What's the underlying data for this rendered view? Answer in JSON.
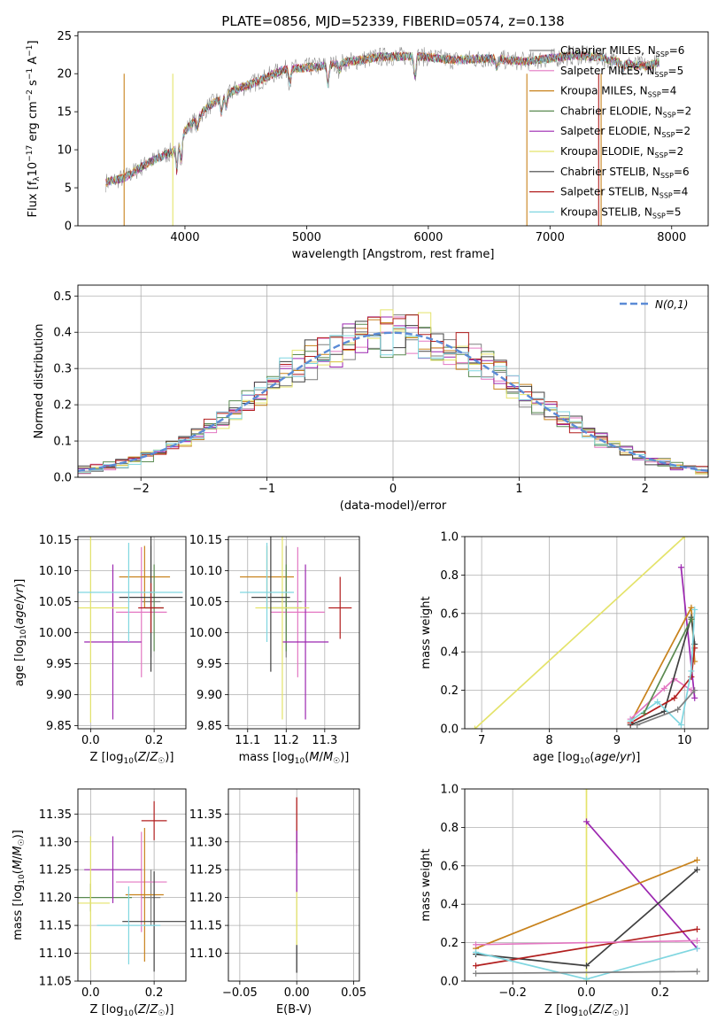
{
  "figure": {
    "title": "PLATE=0856, MJD=52339, FIBERID=0574, z=0.138"
  },
  "series_styles": [
    {
      "name": "Chabrier MILES",
      "nssp": "6",
      "color": "#7f7f7f"
    },
    {
      "name": "Salpeter MILES",
      "nssp": "5",
      "color": "#e377c2"
    },
    {
      "name": "Kroupa MILES",
      "nssp": "4",
      "color": "#c8821c"
    },
    {
      "name": "Chabrier ELODIE",
      "nssp": "2",
      "color": "#5a8a50"
    },
    {
      "name": "Salpeter ELODIE",
      "nssp": "2",
      "color": "#9c27b0"
    },
    {
      "name": "Kroupa ELODIE",
      "nssp": "2",
      "color": "#e4e36a"
    },
    {
      "name": "Chabrier STELIB",
      "nssp": "6",
      "color": "#404040"
    },
    {
      "name": "Salpeter STELIB",
      "nssp": "4",
      "color": "#b21f1f"
    },
    {
      "name": "Kroupa STELIB",
      "nssp": "5",
      "color": "#7fd6e0"
    }
  ],
  "chart_data": [
    {
      "type": "line",
      "panel": "spectrum",
      "title": "PLATE=0856, MJD=52339, FIBERID=0574, z=0.138",
      "xlabel": "wavelength [Angstrom, rest frame]",
      "ylabel": "Flux [f_λ 10^-17 erg cm^-2 s^-1 A^-1]",
      "xlim": [
        3120,
        8300
      ],
      "ylim": [
        0,
        25.5
      ],
      "xticks": [
        4000,
        5000,
        6000,
        7000,
        8000
      ],
      "yticks": [
        0,
        5,
        10,
        15,
        20,
        25
      ],
      "legend": "upper right",
      "continuum": {
        "x": [
          3350,
          3500,
          3700,
          3900,
          4000,
          4200,
          4400,
          4600,
          4800,
          5000,
          5200,
          5400,
          5600,
          5800,
          6000,
          6200,
          6500,
          6800,
          7000,
          7200,
          7400,
          7600,
          7800,
          7900
        ],
        "y": [
          5.7,
          6.3,
          8.3,
          9.8,
          12.5,
          15.8,
          17.8,
          19.0,
          20.5,
          20.8,
          21.2,
          21.7,
          22.2,
          22.3,
          22.2,
          21.8,
          22.0,
          21.6,
          22.0,
          22.4,
          22.2,
          21.3,
          21.0,
          21.5
        ]
      }
    },
    {
      "type": "line",
      "panel": "residual_histogram",
      "xlabel": "(data-model)/error",
      "ylabel": "Normed distribution",
      "xlim": [
        -2.5,
        2.5
      ],
      "ylim": [
        0,
        0.53
      ],
      "xticks": [
        -2,
        -1,
        0,
        1,
        2
      ],
      "yticks": [
        0.0,
        0.1,
        0.2,
        0.3,
        0.4,
        0.5
      ],
      "grid": true,
      "legend": "upper right",
      "reference_label": "N(0,1)",
      "reference_color": "#5b8bd6"
    },
    {
      "type": "scatter",
      "panel": "age_vs_Z",
      "xlabel": "Z [log10(Z/Z☉)]",
      "ylabel": "age [log10(age/yr)]",
      "xlim": [
        -0.04,
        0.3
      ],
      "ylim": [
        9.845,
        10.155
      ],
      "xticks": [
        0.0,
        0.2
      ],
      "yticks": [
        9.85,
        9.9,
        9.95,
        10.0,
        10.05,
        10.1,
        10.15
      ],
      "grid": true,
      "points": [
        {
          "series": "Chabrier MILES",
          "x": 0.19,
          "y": 10.05,
          "xerr": 0.03,
          "yerr": 0.09
        },
        {
          "series": "Salpeter MILES",
          "x": 0.16,
          "y": 10.033,
          "xerr": 0.08,
          "yerr": 0.105
        },
        {
          "series": "Kroupa MILES",
          "x": 0.17,
          "y": 10.09,
          "xerr": 0.08,
          "yerr": 0.05
        },
        {
          "series": "Chabrier ELODIE",
          "x": 0.2,
          "y": 10.04,
          "xerr": 0.03,
          "yerr": 0.07
        },
        {
          "series": "Salpeter ELODIE",
          "x": 0.07,
          "y": 9.985,
          "xerr": 0.09,
          "yerr": 0.125
        },
        {
          "series": "Kroupa ELODIE",
          "x": 0.0,
          "y": 10.04,
          "xerr": 0.12,
          "yerr": 0.185
        },
        {
          "series": "Chabrier STELIB",
          "x": 0.19,
          "y": 10.057,
          "xerr": 0.1,
          "yerr": 0.12
        },
        {
          "series": "Salpeter STELIB",
          "x": 0.19,
          "y": 10.04,
          "xerr": 0.04,
          "yerr": 0.04
        },
        {
          "series": "Kroupa STELIB",
          "x": 0.12,
          "y": 10.065,
          "xerr": 0.17,
          "yerr": 0.08
        }
      ]
    },
    {
      "type": "scatter",
      "panel": "age_vs_mass",
      "xlabel": "mass [log10(M/M☉)]",
      "xlim": [
        11.05,
        11.39
      ],
      "ylim": [
        9.845,
        10.155
      ],
      "xticks": [
        11.1,
        11.2,
        11.3
      ],
      "yticks": [
        9.85,
        9.9,
        9.95,
        10.0,
        10.05,
        10.1,
        10.15
      ],
      "grid": true,
      "points": [
        {
          "series": "Chabrier MILES",
          "x": 11.2,
          "y": 10.05,
          "xerr": 0.04,
          "yerr": 0.09
        },
        {
          "series": "Salpeter MILES",
          "x": 11.23,
          "y": 10.033,
          "xerr": 0.07,
          "yerr": 0.105
        },
        {
          "series": "Kroupa MILES",
          "x": 11.15,
          "y": 10.09,
          "xerr": 0.07,
          "yerr": 0.05
        },
        {
          "series": "Chabrier ELODIE",
          "x": 11.2,
          "y": 10.04,
          "xerr": 0.04,
          "yerr": 0.07
        },
        {
          "series": "Salpeter ELODIE",
          "x": 11.25,
          "y": 9.985,
          "xerr": 0.06,
          "yerr": 0.125
        },
        {
          "series": "Kroupa ELODIE",
          "x": 11.19,
          "y": 10.04,
          "xerr": 0.07,
          "yerr": 0.18
        },
        {
          "series": "Chabrier STELIB",
          "x": 11.16,
          "y": 10.057,
          "xerr": 0.05,
          "yerr": 0.12
        },
        {
          "series": "Salpeter STELIB",
          "x": 11.34,
          "y": 10.04,
          "xerr": 0.03,
          "yerr": 0.05
        },
        {
          "series": "Kroupa STELIB",
          "x": 11.15,
          "y": 10.065,
          "xerr": 0.07,
          "yerr": 0.08
        }
      ]
    },
    {
      "type": "line",
      "panel": "mass_weight_vs_age",
      "xlabel": "age [log10(age/yr)]",
      "ylabel": "mass weight",
      "xlim": [
        6.75,
        10.35
      ],
      "ylim": [
        0,
        1.0
      ],
      "xticks": [
        7,
        8,
        9,
        10
      ],
      "yticks": [
        0.0,
        0.2,
        0.4,
        0.6,
        0.8,
        1.0
      ],
      "grid": true,
      "series": [
        {
          "name": "Kroupa ELODIE",
          "x": [
            6.9,
            10.0
          ],
          "y": [
            0.0,
            1.0
          ]
        },
        {
          "name": "Salpeter ELODIE",
          "x": [
            9.95,
            10.15
          ],
          "y": [
            0.84,
            0.16
          ]
        },
        {
          "name": "Kroupa MILES",
          "x": [
            9.2,
            10.1,
            10.15
          ],
          "y": [
            0.03,
            0.63,
            0.35
          ]
        },
        {
          "name": "Salpeter MILES",
          "x": [
            9.2,
            9.7,
            9.85,
            10.1
          ],
          "y": [
            0.05,
            0.21,
            0.26,
            0.2
          ]
        },
        {
          "name": "Chabrier STELIB",
          "x": [
            9.2,
            9.7,
            10.1,
            10.15
          ],
          "y": [
            0.02,
            0.09,
            0.58,
            0.44
          ]
        },
        {
          "name": "Salpeter STELIB",
          "x": [
            9.2,
            9.85,
            10.1,
            10.15
          ],
          "y": [
            0.03,
            0.16,
            0.27,
            0.42
          ]
        },
        {
          "name": "Kroupa STELIB",
          "x": [
            9.2,
            9.6,
            9.95,
            10.1,
            10.15
          ],
          "y": [
            0.04,
            0.14,
            0.02,
            0.3,
            0.62
          ]
        },
        {
          "name": "Chabrier MILES",
          "x": [
            9.3,
            9.9,
            10.15
          ],
          "y": [
            0.02,
            0.1,
            0.2
          ]
        },
        {
          "name": "Chabrier ELODIE",
          "x": [
            9.4,
            10.1
          ],
          "y": [
            0.08,
            0.57
          ]
        }
      ]
    },
    {
      "type": "scatter",
      "panel": "mass_vs_Z",
      "xlabel": "Z [log10(Z/Z☉)]",
      "ylabel": "mass [log10(M/M☉)]",
      "xlim": [
        -0.04,
        0.3
      ],
      "ylim": [
        11.05,
        11.395
      ],
      "xticks": [
        0.0,
        0.2
      ],
      "yticks": [
        11.05,
        11.1,
        11.15,
        11.2,
        11.25,
        11.3,
        11.35
      ],
      "grid": true,
      "points": [
        {
          "series": "Chabrier MILES",
          "x": 0.19,
          "y": 11.2,
          "xerr": 0.03,
          "yerr": 0.05
        },
        {
          "series": "Salpeter MILES",
          "x": 0.16,
          "y": 11.228,
          "xerr": 0.08,
          "yerr": 0.09
        },
        {
          "series": "Kroupa MILES",
          "x": 0.17,
          "y": 11.205,
          "xerr": 0.06,
          "yerr": 0.12
        },
        {
          "series": "Chabrier ELODIE",
          "x": 0.0,
          "y": 11.2,
          "xerr": 0.13,
          "yerr": 0.025
        },
        {
          "series": "Salpeter ELODIE",
          "x": 0.07,
          "y": 11.25,
          "xerr": 0.09,
          "yerr": 0.06
        },
        {
          "series": "Kroupa ELODIE",
          "x": 0.0,
          "y": 11.19,
          "xerr": 0.06,
          "yerr": 0.12
        },
        {
          "series": "Chabrier STELIB",
          "x": 0.2,
          "y": 11.157,
          "xerr": 0.1,
          "yerr": 0.09
        },
        {
          "series": "Salpeter STELIB",
          "x": 0.2,
          "y": 11.338,
          "xerr": 0.04,
          "yerr": 0.035
        },
        {
          "series": "Kroupa STELIB",
          "x": 0.12,
          "y": 11.15,
          "xerr": 0.1,
          "yerr": 0.07
        }
      ]
    },
    {
      "type": "scatter",
      "panel": "mass_vs_EBV",
      "xlabel": "E(B-V)",
      "xlim": [
        -0.06,
        0.055
      ],
      "ylim": [
        11.05,
        11.395
      ],
      "xticks": [
        -0.05,
        0.0,
        0.05
      ],
      "yticks": [
        11.1,
        11.15,
        11.2,
        11.25,
        11.3,
        11.35
      ],
      "grid": true,
      "segments": [
        {
          "series": "Salpeter STELIB",
          "x": 0.0,
          "y0": 11.28,
          "y1": 11.38
        },
        {
          "series": "Salpeter ELODIE",
          "x": 0.0,
          "y0": 11.21,
          "y1": 11.32
        },
        {
          "series": "Chabrier STELIB",
          "x": 0.0,
          "y0": 11.065,
          "y1": 11.115
        },
        {
          "series": "Kroupa ELODIE",
          "x": 0.0,
          "y0": 11.115,
          "y1": 11.21
        }
      ]
    },
    {
      "type": "line",
      "panel": "mass_weight_vs_Z",
      "xlabel": "Z [log10(Z/Z☉)]",
      "ylabel": "mass weight",
      "xlim": [
        -0.33,
        0.33
      ],
      "ylim": [
        0,
        1.0
      ],
      "xticks": [
        -0.2,
        0.0,
        0.2
      ],
      "yticks": [
        0.0,
        0.2,
        0.4,
        0.6,
        0.8,
        1.0
      ],
      "grid": true,
      "series": [
        {
          "name": "Kroupa ELODIE",
          "x": [
            0.0,
            0.0
          ],
          "y": [
            0.0,
            1.0
          ]
        },
        {
          "name": "Salpeter ELODIE",
          "x": [
            0.0,
            0.3
          ],
          "y": [
            0.83,
            0.17
          ]
        },
        {
          "name": "Kroupa MILES",
          "x": [
            -0.3,
            0.3
          ],
          "y": [
            0.17,
            0.63
          ]
        },
        {
          "name": "Chabrier STELIB",
          "x": [
            -0.3,
            0.0,
            0.3
          ],
          "y": [
            0.14,
            0.08,
            0.58
          ]
        },
        {
          "name": "Salpeter STELIB",
          "x": [
            -0.3,
            0.3
          ],
          "y": [
            0.08,
            0.27
          ]
        },
        {
          "name": "Salpeter MILES",
          "x": [
            -0.3,
            0.3
          ],
          "y": [
            0.19,
            0.21
          ]
        },
        {
          "name": "Kroupa STELIB",
          "x": [
            -0.3,
            0.0,
            0.3
          ],
          "y": [
            0.15,
            0.01,
            0.17
          ]
        },
        {
          "name": "Chabrier MILES",
          "x": [
            -0.3,
            0.3
          ],
          "y": [
            0.04,
            0.05
          ]
        }
      ]
    }
  ]
}
